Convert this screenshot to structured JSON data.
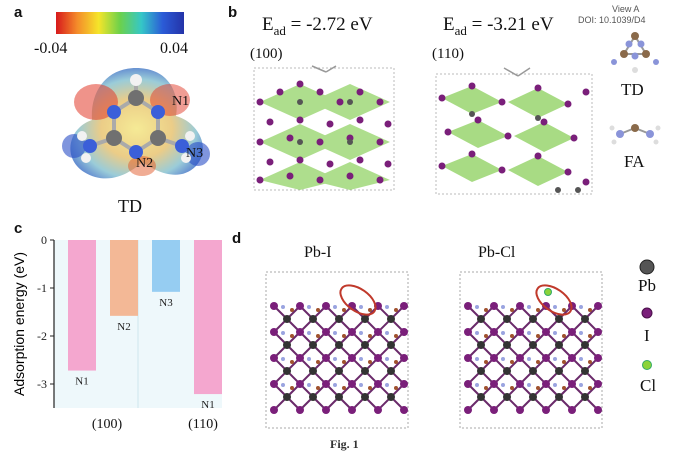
{
  "header": {
    "view_label": "View A",
    "doi": "DOI: 10.1039/D4"
  },
  "panel_a": {
    "label": "a",
    "colorbar_min": "-0.04",
    "colorbar_max": "0.04",
    "molecule_name": "TD",
    "atom_labels": [
      "N1",
      "N2",
      "N3"
    ]
  },
  "panel_b": {
    "label": "b",
    "eads": [
      {
        "base": "E",
        "sub": "ad",
        "value": " = -2.72 eV",
        "facet": "(100)"
      },
      {
        "base": "E",
        "sub": "ad",
        "value": " = -3.21 eV",
        "facet": "(110)"
      }
    ],
    "legend": [
      "TD",
      "FA"
    ]
  },
  "panel_c": {
    "label": "c"
  },
  "panel_d": {
    "label": "d",
    "titles": [
      "Pb-I",
      "Pb-Cl"
    ],
    "legend": [
      "Pb",
      "I",
      "Cl"
    ]
  },
  "caption": "Fig. 1",
  "colors": {
    "purple": "#7a1f7a",
    "pb_gray": "#555555",
    "green_poly": "#7ac943",
    "cl_green": "#8bd33a",
    "red_ring": "#c0392b"
  },
  "chart_data": {
    "type": "bar",
    "ylabel": "Adsorption energy (eV)",
    "ylim": [
      -3.5,
      0
    ],
    "yticks": [
      "0",
      "-1",
      "-2",
      "-3"
    ],
    "group_labels": [
      "(100)",
      "(110)"
    ],
    "bars": [
      {
        "label": "N1",
        "value": -2.72,
        "color": "#f4a7cf"
      },
      {
        "label": "N2",
        "value": -1.58,
        "color": "#f3b896"
      },
      {
        "label": "N3",
        "value": -1.08,
        "color": "#96cdf2"
      },
      {
        "label": "N1",
        "value": -3.21,
        "color": "#f4a7cf"
      }
    ]
  }
}
